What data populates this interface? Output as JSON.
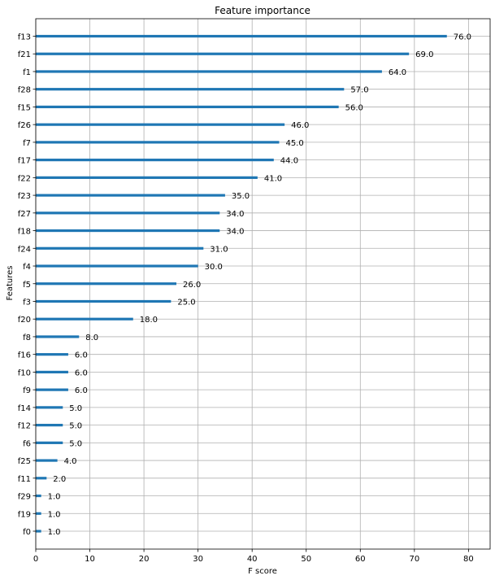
{
  "chart_data": {
    "type": "bar",
    "orientation": "horizontal",
    "title": "Feature importance",
    "xlabel": "F score",
    "ylabel": "Features",
    "xlim": [
      0,
      84
    ],
    "xticks": [
      0,
      10,
      20,
      30,
      40,
      50,
      60,
      70,
      80
    ],
    "grid": true,
    "bar_color": "#1f77b4",
    "categories": [
      "f13",
      "f21",
      "f1",
      "f28",
      "f15",
      "f26",
      "f7",
      "f17",
      "f22",
      "f23",
      "f27",
      "f18",
      "f24",
      "f4",
      "f5",
      "f3",
      "f20",
      "f8",
      "f16",
      "f10",
      "f9",
      "f14",
      "f12",
      "f6",
      "f25",
      "f11",
      "f29",
      "f19",
      "f0"
    ],
    "values": [
      76,
      69,
      64,
      57,
      56,
      46,
      45,
      44,
      41,
      35,
      34,
      34,
      31,
      30,
      26,
      25,
      18,
      8,
      6,
      6,
      6,
      5,
      5,
      5,
      4,
      2,
      1,
      1,
      1
    ],
    "labels": [
      "76.0",
      "69.0",
      "64.0",
      "57.0",
      "56.0",
      "46.0",
      "45.0",
      "44.0",
      "41.0",
      "35.0",
      "34.0",
      "34.0",
      "31.0",
      "30.0",
      "26.0",
      "25.0",
      "18.0",
      "8.0",
      "6.0",
      "6.0",
      "6.0",
      "5.0",
      "5.0",
      "5.0",
      "4.0",
      "2.0",
      "1.0",
      "1.0",
      "1.0"
    ]
  }
}
